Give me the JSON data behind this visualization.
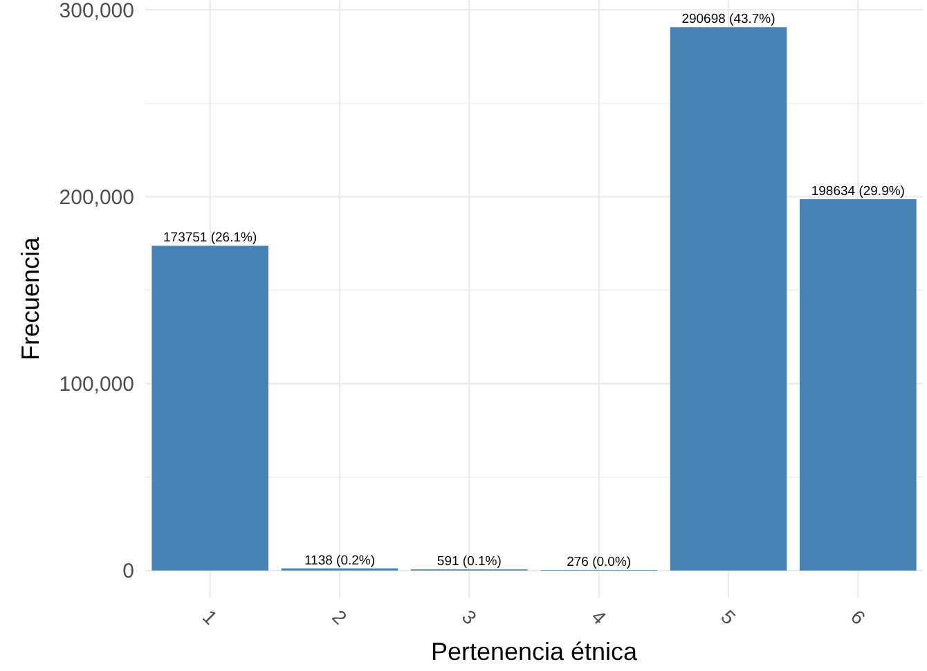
{
  "chart_data": {
    "type": "bar",
    "xlabel": "Pertenencia étnica",
    "ylabel": "Frecuencia",
    "categories": [
      "1",
      "2",
      "3",
      "4",
      "5",
      "6"
    ],
    "values": [
      173751,
      1138,
      591,
      276,
      290698,
      198634
    ],
    "value_labels": [
      "173751 (26.1%)",
      "1138 (0.2%)",
      "591 (0.1%)",
      "276 (0.0%)",
      "290698 (43.7%)",
      "198634 (29.9%)"
    ],
    "color": "#4682b4",
    "ylim": [
      -14535,
      305233
    ],
    "yticks": [
      {
        "value": 0,
        "label": "0"
      },
      {
        "value": 50000,
        "label": null
      },
      {
        "value": 100000,
        "label": "100,000"
      },
      {
        "value": 150000,
        "label": null
      },
      {
        "value": 200000,
        "label": "200,000"
      },
      {
        "value": 250000,
        "label": null
      },
      {
        "value": 300000,
        "label": "300,000"
      }
    ],
    "grid": true
  }
}
